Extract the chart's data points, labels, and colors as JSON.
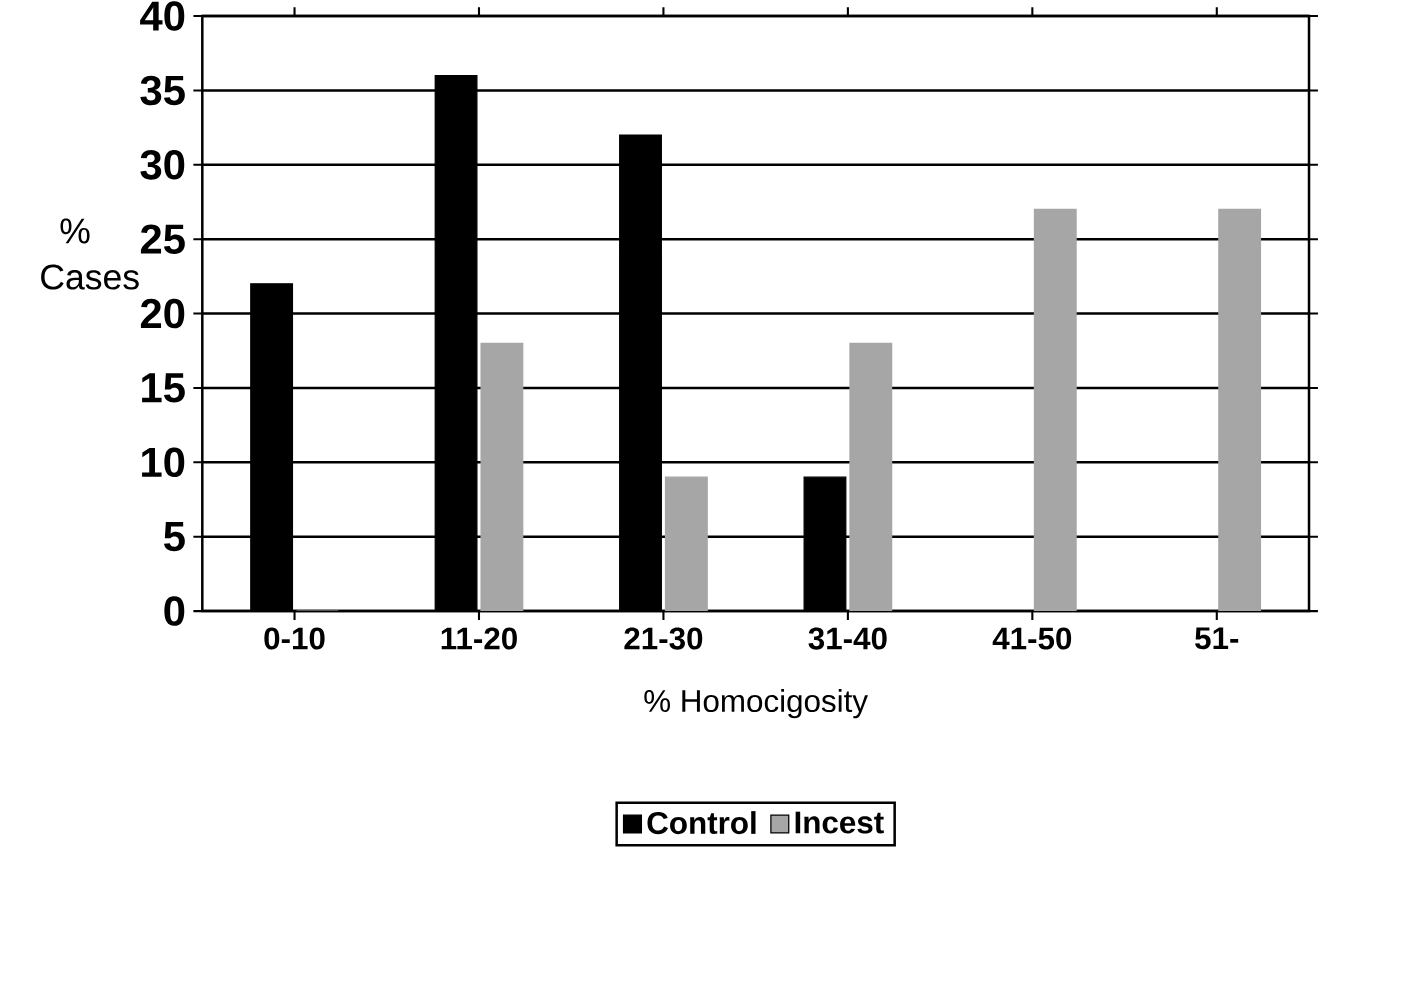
{
  "chart_data": {
    "type": "bar",
    "xlabel": "% Homocigosity",
    "ylabel": "% Cases",
    "categories": [
      "0-10",
      "11-20",
      "21-30",
      "31-40",
      "41-50",
      "51-"
    ],
    "series": [
      {
        "name": "Control",
        "color": "#000000",
        "values": [
          22,
          36,
          32,
          9,
          0,
          0
        ]
      },
      {
        "name": "Incest",
        "color": "#a6a6a6",
        "values": [
          0,
          18,
          9,
          18,
          27,
          27
        ]
      }
    ],
    "ylim": [
      0,
      40
    ],
    "yticks": [
      0,
      5,
      10,
      15,
      20,
      25,
      30,
      35,
      40
    ],
    "grid": "y",
    "legend": "bottom"
  }
}
